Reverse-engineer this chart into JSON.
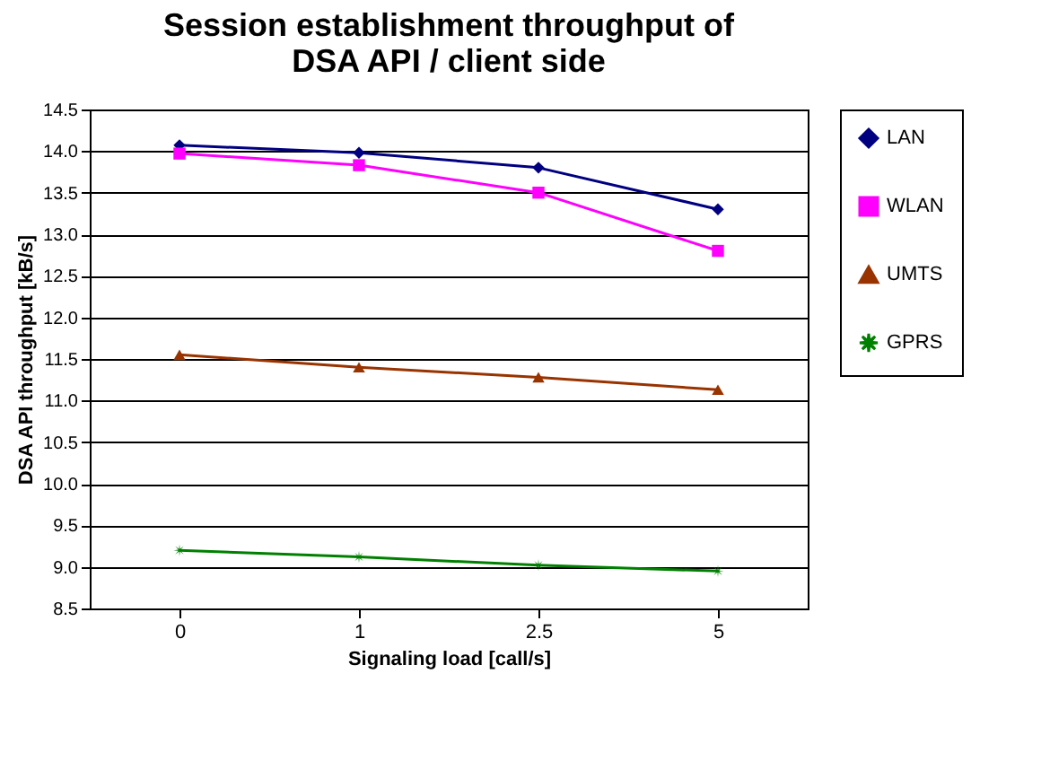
{
  "chart_data": {
    "type": "line",
    "title": "Session establishment throughput of\nDSA API / client side",
    "xlabel": "Signaling load [call/s]",
    "ylabel": "DSA API throughput [kB/s]",
    "categories": [
      "0",
      "1",
      "2.5",
      "5"
    ],
    "series": [
      {
        "name": "LAN",
        "color": "#000080",
        "marker": "diamond",
        "values": [
          14.07,
          13.98,
          13.8,
          13.3
        ]
      },
      {
        "name": "WLAN",
        "color": "#ff00ff",
        "marker": "square",
        "values": [
          13.97,
          13.83,
          13.5,
          12.8
        ]
      },
      {
        "name": "UMTS",
        "color": "#993300",
        "marker": "triangle",
        "values": [
          11.55,
          11.4,
          11.28,
          11.13
        ]
      },
      {
        "name": "GPRS",
        "color": "#008000",
        "marker": "star",
        "values": [
          9.2,
          9.12,
          9.02,
          8.95
        ]
      }
    ],
    "ylim": [
      8.5,
      14.5
    ],
    "yticks": [
      8.5,
      {
        "value": 9,
        "label": "9.0"
      },
      9.5,
      {
        "value": 10,
        "label": "10.0"
      },
      10.5,
      {
        "value": 11,
        "label": "11.0"
      },
      11.5,
      {
        "value": 12,
        "label": "12.0"
      },
      12.5,
      {
        "value": 13,
        "label": "13.0"
      },
      13.5,
      {
        "value": 14,
        "label": "14.0"
      },
      14.5
    ],
    "grid": "y",
    "legend": "right",
    "line_style": "solid"
  }
}
